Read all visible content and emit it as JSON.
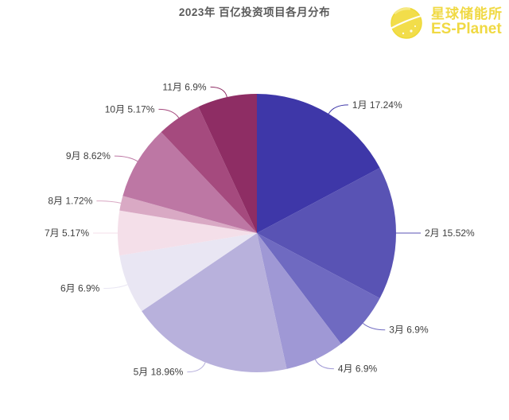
{
  "logo": {
    "brand_cn": "星球储能所",
    "brand_en": "ES-Planet",
    "brand_color": "#f0d943",
    "icon": "planet-icon"
  },
  "chart_data": {
    "type": "pie",
    "title": "2023年 百亿投资项目各月分布",
    "title_color": "#595959",
    "categories": [
      "1月",
      "2月",
      "3月",
      "4月",
      "5月",
      "6月",
      "7月",
      "8月",
      "9月",
      "10月",
      "11月"
    ],
    "values": [
      17.24,
      15.52,
      6.9,
      6.9,
      18.96,
      6.9,
      5.17,
      1.72,
      8.62,
      5.17,
      6.9
    ],
    "colors": [
      "#3e37a8",
      "#5953b4",
      "#6f6ac1",
      "#9f98d5",
      "#b8b1dc",
      "#e9e6f3",
      "#f4dfe9",
      "#d9a9c4",
      "#bd77a4",
      "#a54a7e",
      "#8e2d64"
    ],
    "label_format": "{name} {value}%",
    "label_color": "#3f3f3f",
    "legend": "none",
    "start_angle_deg": 0,
    "direction": "clockwise",
    "unit": "%"
  }
}
